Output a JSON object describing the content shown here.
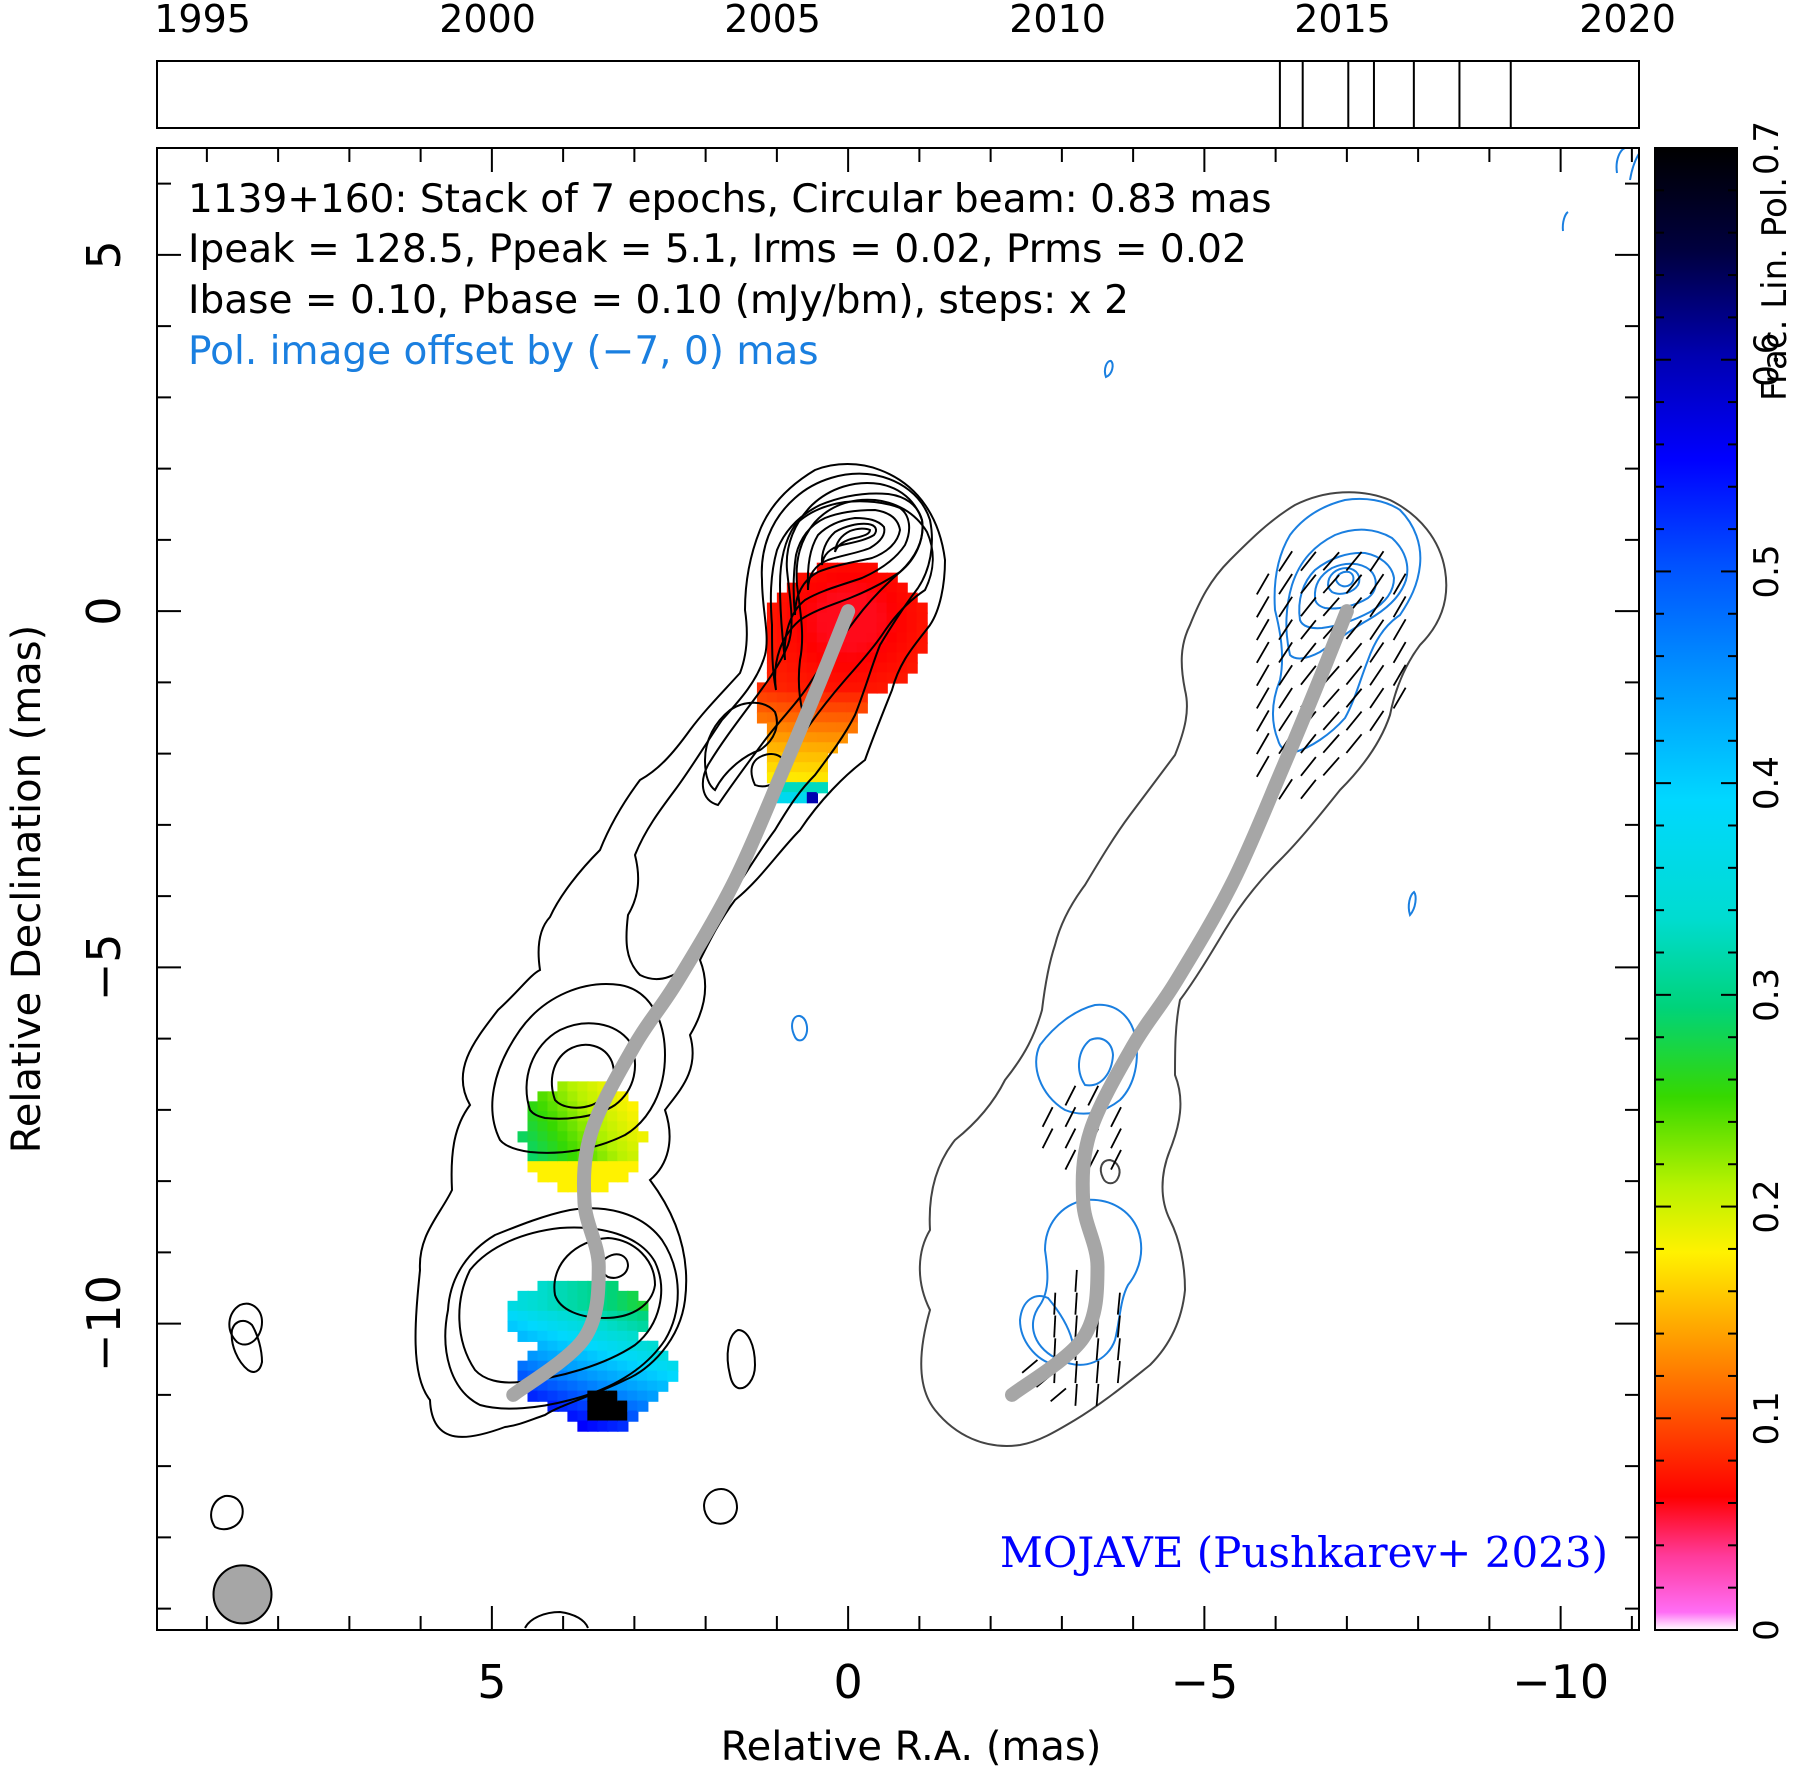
{
  "chart_data": {
    "type": "contour",
    "timeline": {
      "tick_labels": [
        "1995",
        "2000",
        "2005",
        "2010",
        "2015",
        "2020"
      ],
      "tick_years": [
        1995,
        2000,
        2005,
        2010,
        2015,
        2020
      ],
      "xlim": [
        1994.2,
        2020.2
      ],
      "epochs": [
        2013.9,
        2014.3,
        2015.1,
        2015.55,
        2016.25,
        2017.05,
        2017.95
      ]
    },
    "main": {
      "xlabel": "Relative R.A. (mas)",
      "ylabel": "Relative Declination (mas)",
      "xlim": [
        9.7,
        -11.1
      ],
      "ylim": [
        -14.3,
        6.5
      ],
      "x_tick_labels": [
        "5",
        "0",
        "−5",
        "−10"
      ],
      "x_tick_values": [
        5,
        0,
        -5,
        -10
      ],
      "y_tick_labels": [
        "5",
        "0",
        "−5",
        "−10"
      ],
      "y_tick_values": [
        5,
        0,
        -5,
        -10
      ]
    },
    "annotations": {
      "line1": "1139+160: Stack of 7 epochs, Circular beam: 0.83 mas",
      "line2": "Ipeak = 128.5, Ppeak = 5.1, Irms = 0.02, Prms = 0.02",
      "line3": "Ibase = 0.10, Pbase = 0.10 (mJy/bm), steps: x 2",
      "line4": "Pol. image offset by (−7, 0) mas",
      "credit": "MOJAVE (Pushkarev+ 2023)"
    },
    "beam": {
      "x": 8.5,
      "y": -13.8,
      "diameter_mas": 0.83
    },
    "ridge_line": [
      [
        0,
        0
      ],
      [
        0.4,
        -1.0
      ],
      [
        0.9,
        -2.2
      ],
      [
        1.6,
        -3.8
      ],
      [
        2.4,
        -5.2
      ],
      [
        3.0,
        -6.1
      ],
      [
        3.6,
        -7.3
      ],
      [
        3.7,
        -8.3
      ],
      [
        3.5,
        -9.2
      ],
      [
        3.7,
        -10.2
      ],
      [
        4.7,
        -11.0
      ]
    ],
    "colorbar": {
      "label": "Frac. Lin. Pol.",
      "tick_labels": [
        "0",
        "0.1",
        "0.2",
        "0.3",
        "0.4",
        "0.5",
        "0.6",
        "0.7"
      ],
      "tick_values": [
        0,
        0.1,
        0.2,
        0.3,
        0.4,
        0.5,
        0.6,
        0.7
      ],
      "range": [
        0,
        0.7
      ]
    },
    "colors": {
      "intensity_contours": "#000000",
      "pol_total_contour": "#444444",
      "pol_contours": "#1a7fe0",
      "ridge": "#a6a6a6",
      "offset_text": "#1a7fe0",
      "credit_text": "#0000ff"
    }
  }
}
